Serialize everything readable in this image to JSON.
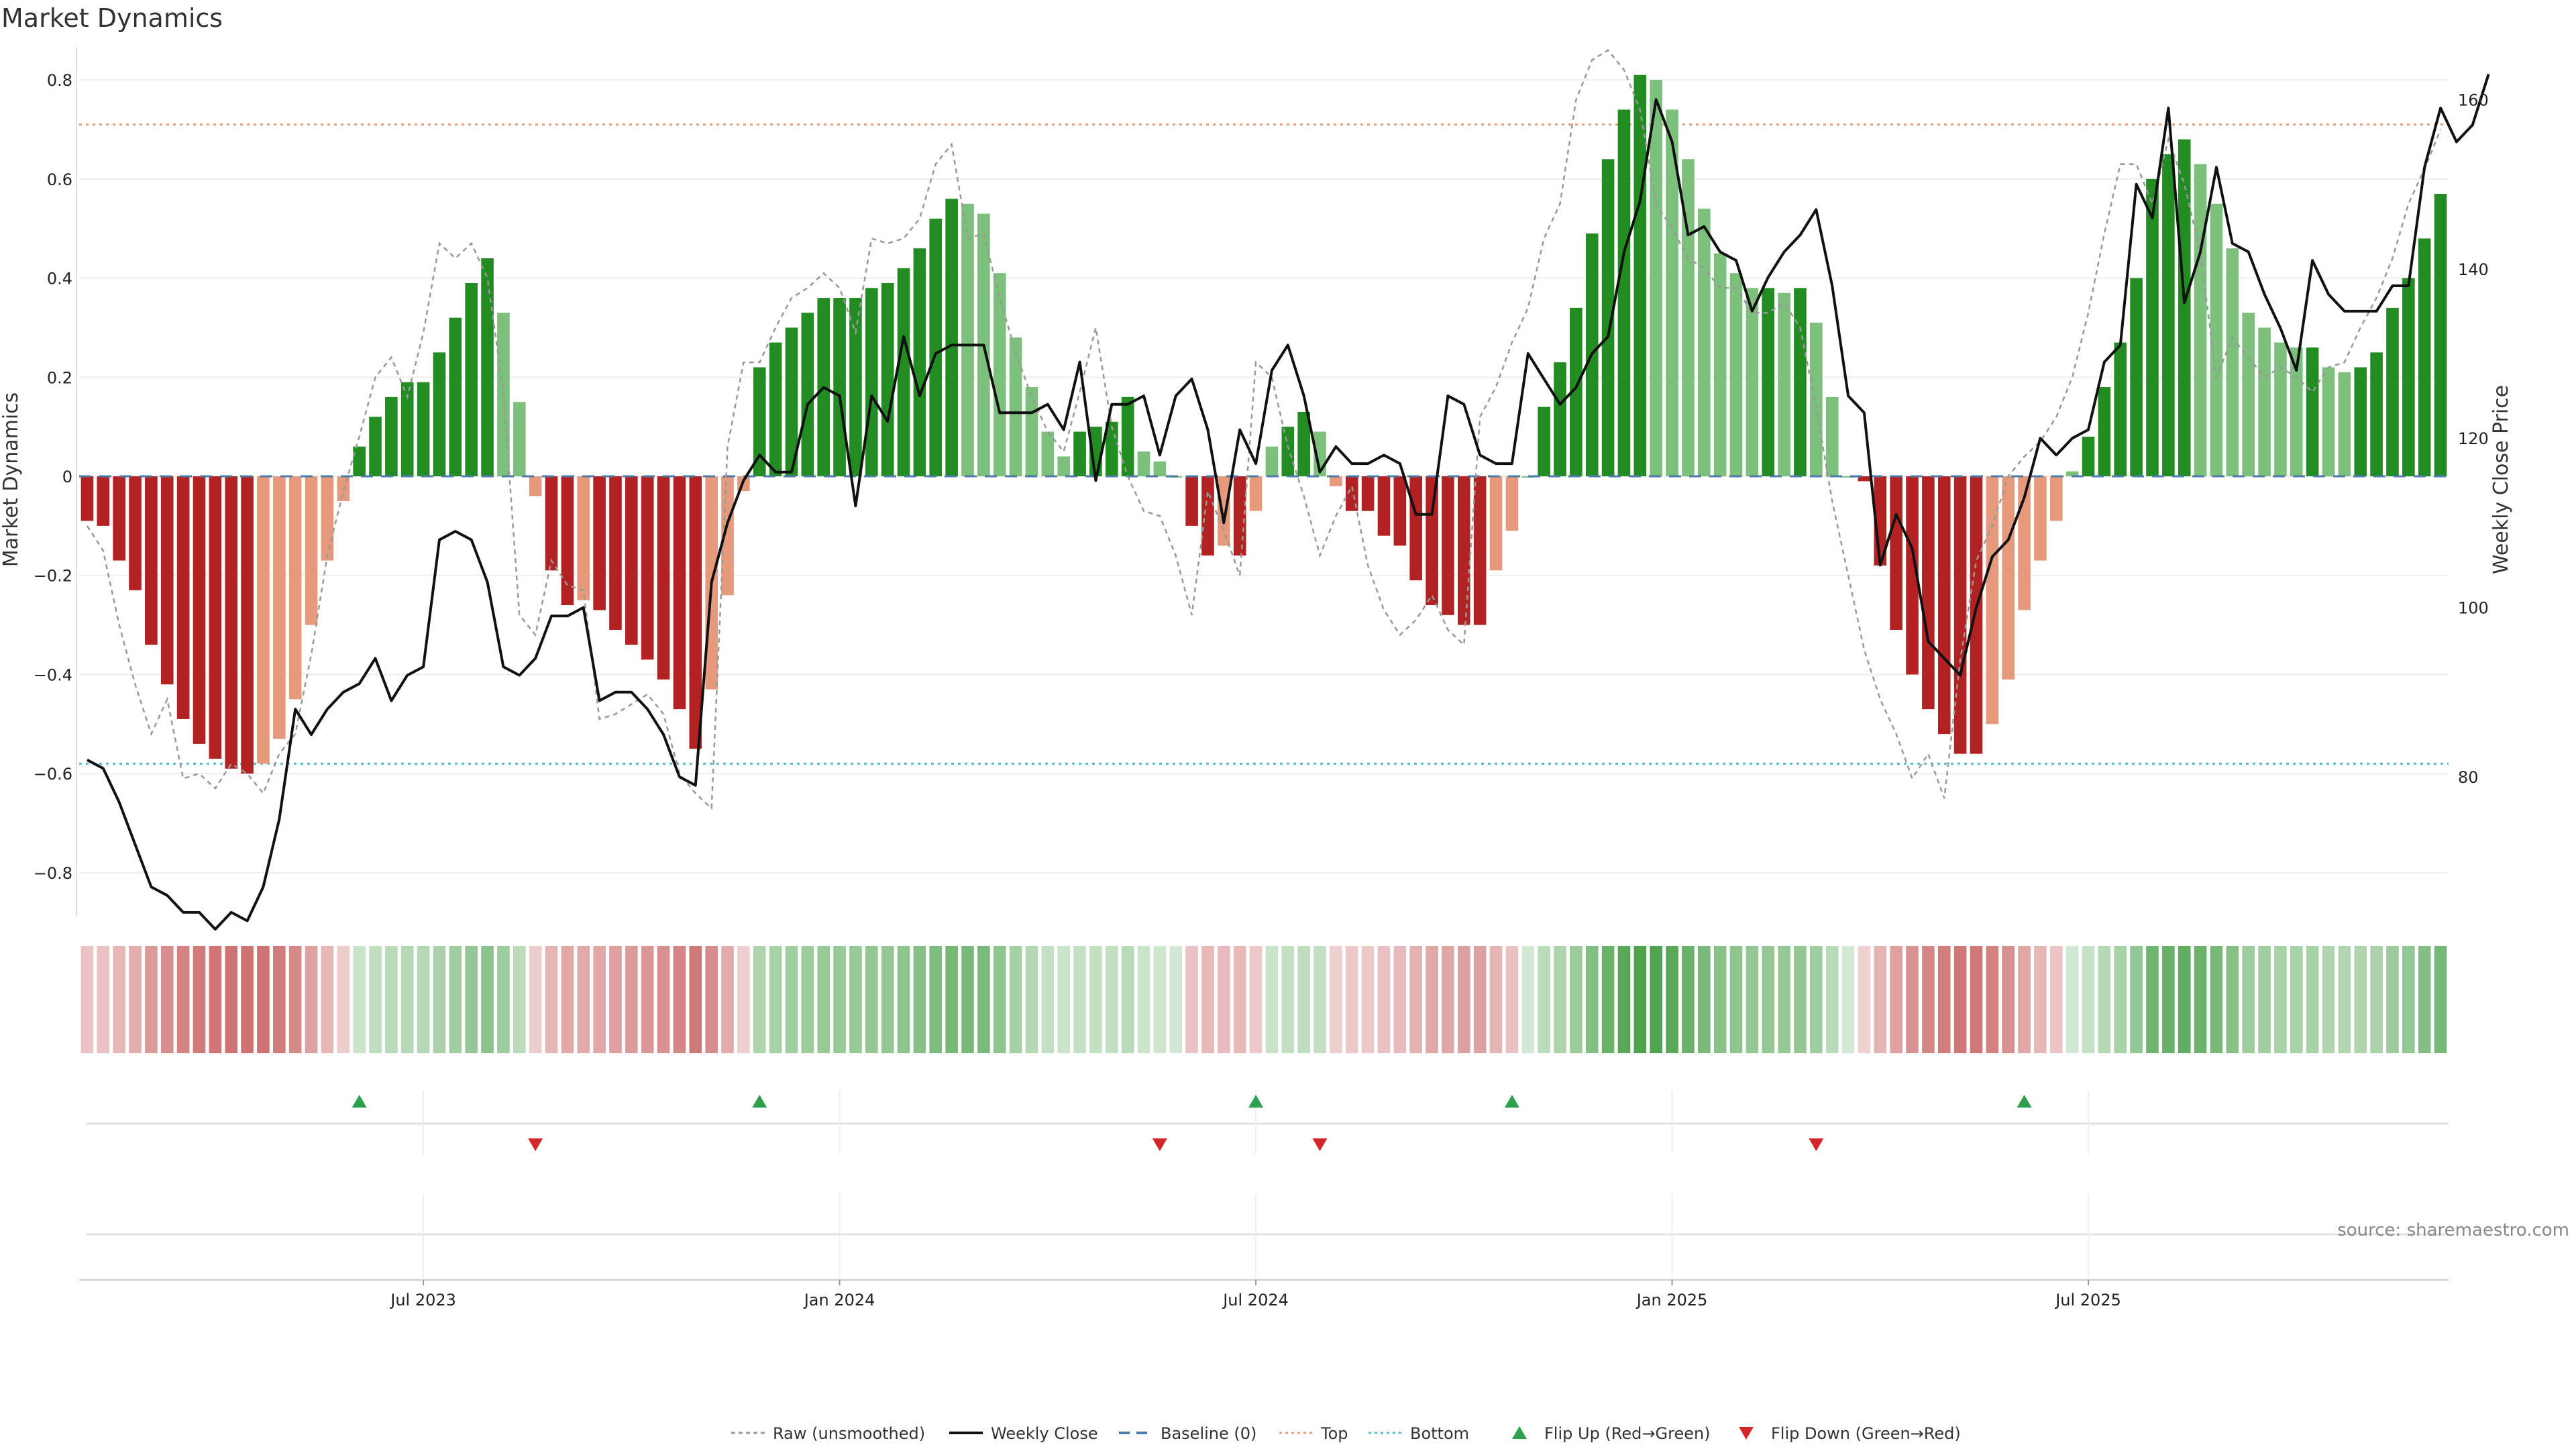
{
  "chart_data": {
    "type": "bar",
    "title": "Market Dynamics",
    "source": "source: sharemaestro.com",
    "ylabel_left": "Market Dynamics",
    "ylabel_right": "Weekly Close Price",
    "ylim_left": [
      -0.88,
      0.88
    ],
    "ylim_right": [
      64,
      167
    ],
    "y_ticks_left": [
      "0.8",
      "0.6",
      "0.4",
      "0.2",
      "0",
      "−0.2",
      "−0.4",
      "−0.6",
      "−0.8"
    ],
    "y_tick_values_left": [
      0.8,
      0.6,
      0.4,
      0.2,
      0,
      -0.2,
      -0.4,
      -0.6,
      -0.8
    ],
    "y_ticks_right": [
      "160",
      "140",
      "120",
      "100",
      "80"
    ],
    "y_tick_values_right": [
      160,
      140,
      120,
      100,
      80
    ],
    "x_ticks": [
      "Jul 2023",
      "Jan 2024",
      "Jul 2024",
      "Jan 2025",
      "Jul 2025"
    ],
    "x_tick_index": [
      21,
      47,
      73,
      99,
      125
    ],
    "top_level": 0.71,
    "bottom_level": -0.58,
    "baseline": 0,
    "grid": true,
    "legend_position": "bottom-center",
    "bars": [
      -0.09,
      -0.1,
      -0.17,
      -0.23,
      -0.34,
      -0.42,
      -0.49,
      -0.54,
      -0.57,
      -0.59,
      -0.6,
      -0.58,
      -0.53,
      -0.45,
      -0.3,
      -0.17,
      -0.05,
      0.06,
      0.12,
      0.16,
      0.19,
      0.19,
      0.25,
      0.32,
      0.39,
      0.44,
      0.33,
      0.15,
      -0.04,
      -0.19,
      -0.26,
      -0.25,
      -0.27,
      -0.31,
      -0.34,
      -0.37,
      -0.41,
      -0.47,
      -0.55,
      -0.43,
      -0.24,
      -0.03,
      0.22,
      0.27,
      0.3,
      0.33,
      0.36,
      0.36,
      0.36,
      0.38,
      0.39,
      0.42,
      0.46,
      0.52,
      0.56,
      0.55,
      0.53,
      0.41,
      0.28,
      0.18,
      0.09,
      0.04,
      0.09,
      0.1,
      0.11,
      0.16,
      0.05,
      0.03,
      0.0,
      -0.1,
      -0.16,
      -0.14,
      -0.16,
      -0.07,
      0.06,
      0.1,
      0.13,
      0.09,
      -0.02,
      -0.07,
      -0.07,
      -0.12,
      -0.14,
      -0.21,
      -0.26,
      -0.28,
      -0.3,
      -0.3,
      -0.19,
      -0.11,
      0.0,
      0.14,
      0.23,
      0.34,
      0.49,
      0.64,
      0.74,
      0.81,
      0.8,
      0.74,
      0.64,
      0.54,
      0.45,
      0.41,
      0.38,
      0.38,
      0.37,
      0.38,
      0.31,
      0.16,
      0.0,
      -0.01,
      -0.18,
      -0.31,
      -0.4,
      -0.47,
      -0.52,
      -0.56,
      -0.56,
      -0.5,
      -0.41,
      -0.27,
      -0.17,
      -0.09,
      0.01,
      0.08,
      0.18,
      0.27,
      0.4,
      0.6,
      0.65,
      0.68,
      0.63,
      0.55,
      0.46,
      0.33,
      0.3,
      0.27,
      0.26,
      0.26,
      0.22,
      0.21,
      0.22,
      0.25,
      0.34,
      0.4,
      0.48,
      0.57
    ],
    "raw": [
      -0.1,
      -0.15,
      -0.3,
      -0.42,
      -0.52,
      -0.45,
      -0.61,
      -0.6,
      -0.63,
      -0.58,
      -0.6,
      -0.64,
      -0.56,
      -0.52,
      -0.36,
      -0.16,
      -0.03,
      0.08,
      0.2,
      0.24,
      0.16,
      0.29,
      0.47,
      0.44,
      0.47,
      0.4,
      0.17,
      -0.28,
      -0.32,
      -0.17,
      -0.22,
      -0.23,
      -0.49,
      -0.48,
      -0.46,
      -0.44,
      -0.48,
      -0.6,
      -0.64,
      -0.67,
      0.06,
      0.23,
      0.23,
      0.3,
      0.36,
      0.38,
      0.41,
      0.38,
      0.29,
      0.48,
      0.47,
      0.48,
      0.52,
      0.63,
      0.67,
      0.48,
      0.49,
      0.36,
      0.25,
      0.16,
      0.09,
      0.05,
      0.17,
      0.3,
      0.1,
      0.0,
      -0.07,
      -0.08,
      -0.16,
      -0.28,
      -0.03,
      -0.11,
      -0.2,
      0.23,
      0.2,
      0.06,
      -0.04,
      -0.16,
      -0.08,
      -0.02,
      -0.18,
      -0.27,
      -0.32,
      -0.29,
      -0.24,
      -0.31,
      -0.34,
      0.12,
      0.18,
      0.27,
      0.34,
      0.48,
      0.55,
      0.76,
      0.84,
      0.86,
      0.82,
      0.74,
      0.55,
      0.5,
      0.44,
      0.42,
      0.38,
      0.38,
      0.33,
      0.33,
      0.35,
      0.3,
      0.14,
      -0.05,
      -0.2,
      -0.35,
      -0.45,
      -0.52,
      -0.61,
      -0.56,
      -0.65,
      -0.37,
      -0.17,
      -0.1,
      0.0,
      0.04,
      0.07,
      0.12,
      0.2,
      0.33,
      0.49,
      0.63,
      0.63,
      0.55,
      0.68,
      0.59,
      0.45,
      0.2,
      0.28,
      0.24,
      0.2,
      0.22,
      0.2,
      0.17,
      0.22,
      0.23,
      0.3,
      0.36,
      0.44,
      0.55,
      0.62,
      0.7
    ],
    "price": [
      82,
      81,
      77,
      72,
      67,
      66,
      64,
      64,
      62,
      64,
      63,
      67,
      75,
      88,
      85,
      88,
      90,
      91,
      94,
      89,
      92,
      93,
      108,
      109,
      108,
      103,
      93,
      92,
      94,
      99,
      99,
      100,
      89,
      90,
      90,
      88,
      85,
      80,
      79,
      103,
      110,
      115,
      118,
      116,
      116,
      124,
      126,
      125,
      112,
      125,
      122,
      132,
      125,
      130,
      131,
      131,
      131,
      123,
      123,
      123,
      124,
      121,
      129,
      115,
      124,
      124,
      125,
      118,
      125,
      127,
      121,
      110,
      121,
      117,
      128,
      131,
      125,
      116,
      119,
      117,
      117,
      118,
      117,
      111,
      111,
      125,
      124,
      118,
      117,
      117,
      130,
      127,
      124,
      126,
      130,
      132,
      142,
      148,
      160,
      155,
      144,
      145,
      142,
      141,
      135,
      139,
      142,
      144,
      147,
      138,
      125,
      123,
      105,
      111,
      107,
      96,
      94,
      92,
      100,
      106,
      108,
      113,
      120,
      118,
      120,
      121,
      129,
      131,
      150,
      146,
      159,
      136,
      142,
      152,
      143,
      142,
      137,
      133,
      128,
      141,
      137,
      135,
      135,
      135,
      138,
      138,
      152,
      159,
      155,
      157,
      163
    ],
    "legend": [
      "Raw (unsmoothed)",
      "Weekly Close",
      "Baseline (0)",
      "Top",
      "Bottom",
      "Flip Up (Red→Green)",
      "Flip Down (Green→Red)"
    ],
    "flip_up_index": [
      17,
      42,
      73,
      89,
      121
    ],
    "flip_down_index": [
      28,
      67,
      77,
      108
    ],
    "colors": {
      "bar_green_strong": "#228B22",
      "bar_green_light": "#7DBF7D",
      "bar_red_strong": "#B22222",
      "bar_red_light": "#E59A7E",
      "raw_line": "#999999",
      "price_line": "#111111",
      "baseline": "#4A7AA8",
      "top_line": "#E8A07A",
      "bottom_line": "#4EC1C8",
      "flip_up": "#2CA04C",
      "flip_down": "#D62728"
    }
  }
}
